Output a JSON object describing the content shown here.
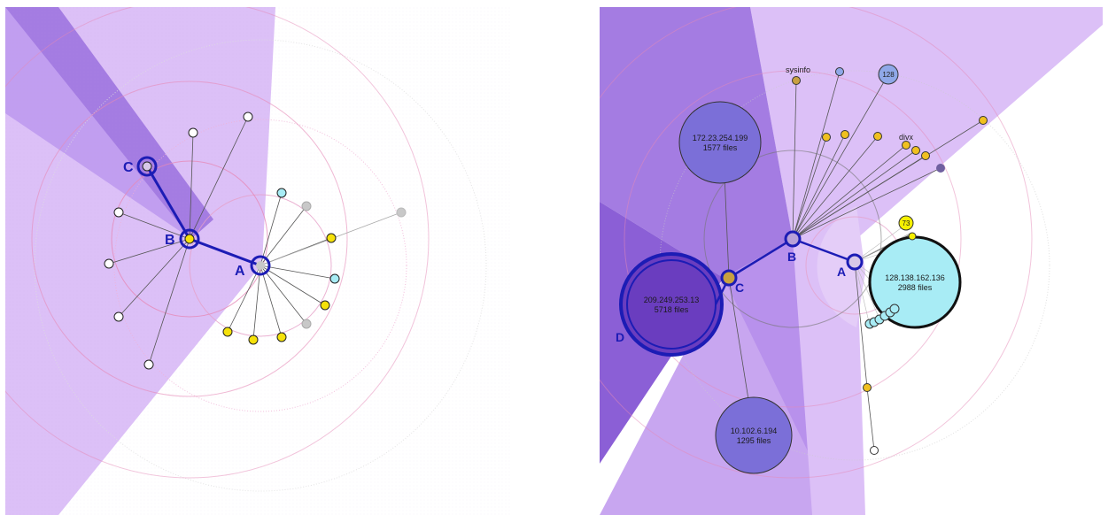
{
  "left": {
    "labels": {
      "a": "A",
      "b": "B",
      "c": "C"
    }
  },
  "right": {
    "labels": {
      "a": "A",
      "b": "B",
      "c": "C",
      "d": "D"
    },
    "hosts": [
      {
        "ip": "172.23.254.199",
        "files": "1577 files"
      },
      {
        "ip": "209.249.253.13",
        "files": "5718 files"
      },
      {
        "ip": "10.102.6.194",
        "files": "1295 files"
      },
      {
        "ip": "128.138.162.136",
        "files": "2988 files"
      }
    ],
    "small_labels": {
      "sysinfo": "sysinfo",
      "divx": "divx",
      "n128": "128",
      "n73": "73"
    }
  },
  "colors": {
    "wedge_light": "#d9b8f5",
    "wedge_mid": "#b89ae8",
    "wedge_dark": "#8b5fd6",
    "path_blue": "#1c1cb5",
    "node_yellow": "#f5e10a",
    "node_cyan": "#a8ecf5",
    "node_gray": "#c8c8c8",
    "host_purple": "#7b6fd8",
    "ring_pink": "#e6a0c8"
  }
}
